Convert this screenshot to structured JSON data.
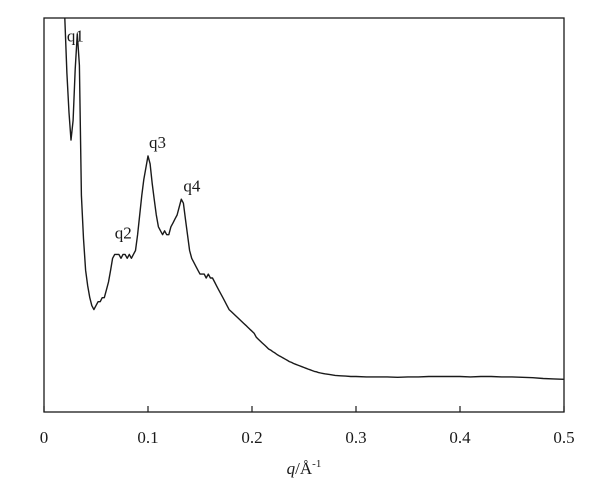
{
  "chart_data": {
    "type": "line",
    "title": "",
    "xlabel_var": "q",
    "xlabel_unit": "/Å",
    "xlabel_exp": "-1",
    "ylabel": "",
    "xlim": [
      0,
      0.5
    ],
    "ylim": [
      0,
      100
    ],
    "y_ticks_shown": false,
    "grid": false,
    "x_ticks": [
      {
        "value": 0,
        "label": "0"
      },
      {
        "value": 0.1,
        "label": "0.1"
      },
      {
        "value": 0.2,
        "label": "0.2"
      },
      {
        "value": 0.3,
        "label": "0.3"
      },
      {
        "value": 0.4,
        "label": "0.4"
      },
      {
        "value": 0.5,
        "label": "0.5"
      }
    ],
    "annotations": [
      {
        "label": "q1",
        "x": 0.022,
        "y": 94
      },
      {
        "label": "q2",
        "x": 0.068,
        "y": 44
      },
      {
        "label": "q3",
        "x": 0.101,
        "y": 67
      },
      {
        "label": "q4",
        "x": 0.134,
        "y": 56
      }
    ],
    "series_color": "#1a1a1a",
    "points": [
      [
        0.02,
        100
      ],
      [
        0.022,
        86
      ],
      [
        0.024,
        76
      ],
      [
        0.026,
        69
      ],
      [
        0.028,
        74
      ],
      [
        0.03,
        87
      ],
      [
        0.032,
        96
      ],
      [
        0.034,
        88
      ],
      [
        0.036,
        55
      ],
      [
        0.038,
        44
      ],
      [
        0.04,
        36
      ],
      [
        0.042,
        32
      ],
      [
        0.044,
        29
      ],
      [
        0.046,
        27
      ],
      [
        0.048,
        26
      ],
      [
        0.05,
        27
      ],
      [
        0.052,
        28
      ],
      [
        0.054,
        28
      ],
      [
        0.056,
        29
      ],
      [
        0.058,
        29
      ],
      [
        0.06,
        31
      ],
      [
        0.062,
        33
      ],
      [
        0.064,
        36
      ],
      [
        0.066,
        39
      ],
      [
        0.068,
        40
      ],
      [
        0.07,
        40
      ],
      [
        0.072,
        40
      ],
      [
        0.074,
        39
      ],
      [
        0.076,
        40
      ],
      [
        0.078,
        40
      ],
      [
        0.08,
        39
      ],
      [
        0.082,
        40
      ],
      [
        0.084,
        39
      ],
      [
        0.086,
        40
      ],
      [
        0.088,
        41
      ],
      [
        0.09,
        45
      ],
      [
        0.092,
        50
      ],
      [
        0.094,
        55
      ],
      [
        0.096,
        59
      ],
      [
        0.098,
        62
      ],
      [
        0.1,
        65
      ],
      [
        0.102,
        63
      ],
      [
        0.104,
        58
      ],
      [
        0.106,
        54
      ],
      [
        0.108,
        50
      ],
      [
        0.11,
        47
      ],
      [
        0.112,
        46
      ],
      [
        0.114,
        45
      ],
      [
        0.116,
        46
      ],
      [
        0.118,
        45
      ],
      [
        0.12,
        45
      ],
      [
        0.122,
        47
      ],
      [
        0.124,
        48
      ],
      [
        0.126,
        49
      ],
      [
        0.128,
        50
      ],
      [
        0.13,
        52
      ],
      [
        0.132,
        54
      ],
      [
        0.134,
        53
      ],
      [
        0.136,
        49
      ],
      [
        0.138,
        45
      ],
      [
        0.14,
        41
      ],
      [
        0.142,
        39
      ],
      [
        0.144,
        38
      ],
      [
        0.146,
        37
      ],
      [
        0.148,
        36
      ],
      [
        0.15,
        35
      ],
      [
        0.152,
        35
      ],
      [
        0.154,
        35
      ],
      [
        0.156,
        34
      ],
      [
        0.158,
        35
      ],
      [
        0.16,
        34
      ],
      [
        0.162,
        34
      ],
      [
        0.164,
        33
      ],
      [
        0.166,
        32
      ],
      [
        0.168,
        31
      ],
      [
        0.17,
        30
      ],
      [
        0.172,
        29
      ],
      [
        0.174,
        28
      ],
      [
        0.176,
        27
      ],
      [
        0.178,
        26
      ],
      [
        0.18,
        25.5
      ],
      [
        0.182,
        25
      ],
      [
        0.184,
        24.5
      ],
      [
        0.186,
        24
      ],
      [
        0.188,
        23.5
      ],
      [
        0.19,
        23
      ],
      [
        0.192,
        22.5
      ],
      [
        0.194,
        22
      ],
      [
        0.196,
        21.5
      ],
      [
        0.198,
        21
      ],
      [
        0.2,
        20.5
      ],
      [
        0.202,
        20
      ],
      [
        0.204,
        19
      ],
      [
        0.206,
        18.5
      ],
      [
        0.208,
        18
      ],
      [
        0.21,
        17.5
      ],
      [
        0.212,
        17
      ],
      [
        0.214,
        16.5
      ],
      [
        0.216,
        16
      ],
      [
        0.218,
        15.7
      ],
      [
        0.22,
        15.3
      ],
      [
        0.222,
        15
      ],
      [
        0.224,
        14.6
      ],
      [
        0.226,
        14.3
      ],
      [
        0.228,
        14
      ],
      [
        0.23,
        13.7
      ],
      [
        0.232,
        13.4
      ],
      [
        0.234,
        13.1
      ],
      [
        0.236,
        12.8
      ],
      [
        0.238,
        12.6
      ],
      [
        0.24,
        12.3
      ],
      [
        0.242,
        12.1
      ],
      [
        0.244,
        11.9
      ],
      [
        0.246,
        11.7
      ],
      [
        0.248,
        11.5
      ],
      [
        0.25,
        11.3
      ],
      [
        0.252,
        11.1
      ],
      [
        0.254,
        10.9
      ],
      [
        0.256,
        10.7
      ],
      [
        0.258,
        10.5
      ],
      [
        0.26,
        10.3
      ],
      [
        0.262,
        10.2
      ],
      [
        0.264,
        10
      ],
      [
        0.266,
        9.9
      ],
      [
        0.268,
        9.8
      ],
      [
        0.27,
        9.7
      ],
      [
        0.275,
        9.5
      ],
      [
        0.28,
        9.3
      ],
      [
        0.285,
        9.2
      ],
      [
        0.29,
        9.1
      ],
      [
        0.295,
        9
      ],
      [
        0.3,
        9
      ],
      [
        0.31,
        8.9
      ],
      [
        0.32,
        8.9
      ],
      [
        0.33,
        8.9
      ],
      [
        0.34,
        8.8
      ],
      [
        0.35,
        8.9
      ],
      [
        0.36,
        8.9
      ],
      [
        0.37,
        9
      ],
      [
        0.38,
        9
      ],
      [
        0.39,
        9
      ],
      [
        0.4,
        9
      ],
      [
        0.41,
        8.9
      ],
      [
        0.42,
        9
      ],
      [
        0.43,
        9
      ],
      [
        0.44,
        8.9
      ],
      [
        0.45,
        8.9
      ],
      [
        0.46,
        8.8
      ],
      [
        0.47,
        8.7
      ],
      [
        0.48,
        8.5
      ],
      [
        0.49,
        8.4
      ],
      [
        0.5,
        8.3
      ]
    ]
  }
}
